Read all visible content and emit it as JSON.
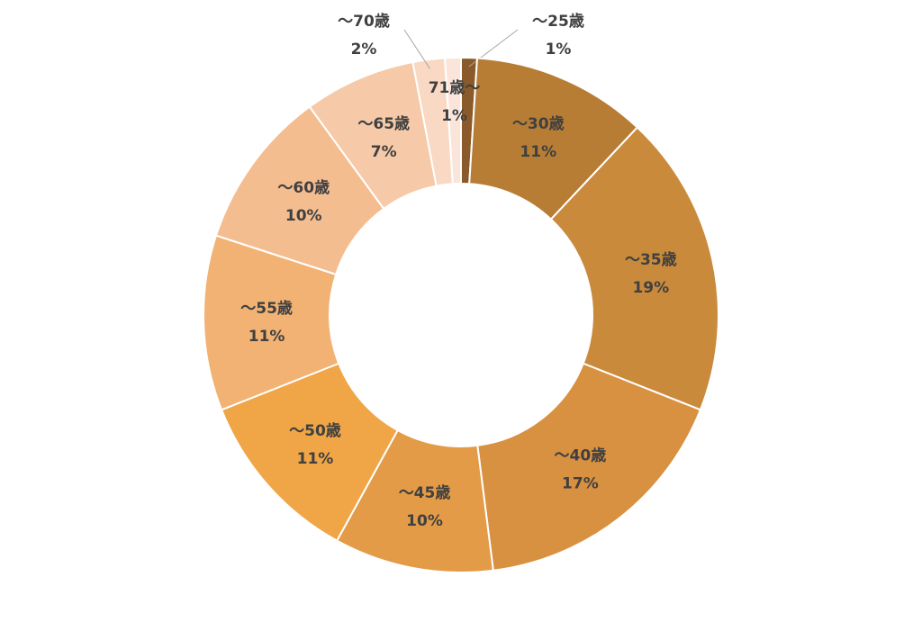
{
  "chart_data": {
    "type": "donut",
    "categories": [
      "～25歳",
      "～30歳",
      "～35歳",
      "～40歳",
      "～45歳",
      "～50歳",
      "～55歳",
      "～60歳",
      "～65歳",
      "～70歳",
      "71歳～"
    ],
    "values": [
      1,
      11,
      19,
      17,
      10,
      11,
      11,
      10,
      7,
      2,
      1
    ],
    "value_labels": [
      "1%",
      "11%",
      "19%",
      "17%",
      "10%",
      "11%",
      "11%",
      "10%",
      "7%",
      "2%",
      "1%"
    ],
    "colors": [
      "#8b5a2b",
      "#b87d35",
      "#c98a3c",
      "#d89140",
      "#e39b47",
      "#f0a547",
      "#f2b273",
      "#f4bd90",
      "#f6caa8",
      "#f9d9c4",
      "#fbe5db"
    ]
  }
}
